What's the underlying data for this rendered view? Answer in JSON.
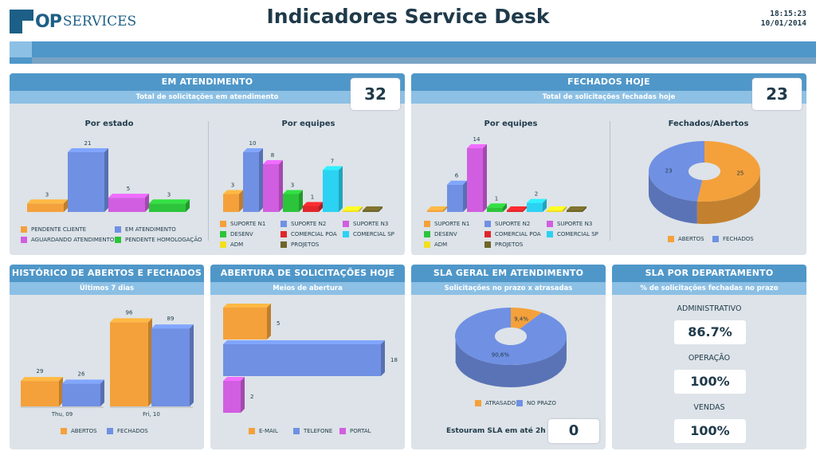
{
  "header": {
    "logo_op": "OP",
    "logo_services": "SERVICES",
    "title": "Indicadores Service Desk",
    "time": "18:15:23",
    "date": "10/01/2014"
  },
  "colors": {
    "orange": "#f4a13b",
    "blue": "#7090e3",
    "magenta": "#d15ee0",
    "green": "#2cc43a",
    "red": "#e0262b",
    "cyan": "#2bd2f2",
    "yellow": "#f3df1f",
    "olive": "#6f6529"
  },
  "em_atendimento": {
    "title": "EM ATENDIMENTO",
    "subtitle": "Total de solicitações em atendimento",
    "total": "32",
    "por_estado": {
      "title": "Por estado",
      "legend": [
        "PENDENTE CLIENTE",
        "EM ATENDIMENTO",
        "AGUARDANDO ATENDIMENTO",
        "PENDENTE HOMOLOGAÇÃO"
      ]
    },
    "por_equipes": {
      "title": "Por equipes",
      "legend": [
        "SUPORTE N1",
        "SUPORTE N2",
        "SUPORTE N3",
        "DESENV",
        "COMERCIAL POA",
        "COMERCIAL SP",
        "ADM",
        "PROJETOS"
      ]
    }
  },
  "fechados_hoje": {
    "title": "FECHADOS HOJE",
    "subtitle": "Total de solicitações fechadas hoje",
    "total": "23",
    "por_equipes": {
      "title": "Por equipes",
      "legend": [
        "SUPORTE N1",
        "SUPORTE N2",
        "SUPORTE N3",
        "DESENV",
        "COMERCIAL POA",
        "COMERCIAL SP",
        "ADM",
        "PROJETOS"
      ]
    },
    "fechados_abertos": {
      "title": "Fechados/Abertos",
      "legend": [
        "ABERTOS",
        "FECHADOS"
      ]
    }
  },
  "historico": {
    "title": "HISTÓRICO DE ABERTOS E FECHADOS",
    "subtitle": "Últimos 7 dias",
    "legend": [
      "ABERTOS",
      "FECHADOS"
    ]
  },
  "abertura": {
    "title": "ABERTURA DE SOLICITAÇÕES HOJE",
    "subtitle": "Meios de abertura",
    "legend": [
      "E-MAIL",
      "TELEFONE",
      "PORTAL"
    ]
  },
  "sla_geral": {
    "title": "SLA GERAL EM ATENDIMENTO",
    "subtitle": "Solicitações no prazo x atrasadas",
    "legend": [
      "ATRASADO",
      "NO PRAZO"
    ],
    "estouram_label": "Estouram SLA em até 2h",
    "estouram_value": "0"
  },
  "sla_depto": {
    "title": "SLA POR DEPARTAMENTO",
    "subtitle": "% de solicitações fechadas no prazo",
    "items": [
      {
        "name": "ADMINISTRATIVO",
        "value": "86.7%"
      },
      {
        "name": "OPERAÇÃO",
        "value": "100%"
      },
      {
        "name": "VENDAS",
        "value": "100%"
      }
    ]
  },
  "chart_data": [
    {
      "id": "estado",
      "type": "bar",
      "title": "Por estado",
      "categories": [
        "PENDENTE CLIENTE",
        "EM ATENDIMENTO",
        "AGUARDANDO ATENDIMENTO",
        "PENDENTE HOMOLOGAÇÃO"
      ],
      "values": [
        3,
        21,
        5,
        3
      ],
      "colors": [
        "#f4a13b",
        "#7090e3",
        "#d15ee0",
        "#2cc43a"
      ]
    },
    {
      "id": "equipes_atend",
      "type": "bar",
      "title": "Por equipes",
      "categories": [
        "SUPORTE N1",
        "SUPORTE N2",
        "SUPORTE N3",
        "DESENV",
        "COMERCIAL POA",
        "COMERCIAL SP",
        "ADM",
        "PROJETOS"
      ],
      "values": [
        3,
        10,
        8,
        3,
        1,
        7,
        0,
        0
      ],
      "colors": [
        "#f4a13b",
        "#7090e3",
        "#d15ee0",
        "#2cc43a",
        "#e0262b",
        "#2bd2f2",
        "#f3df1f",
        "#6f6529"
      ]
    },
    {
      "id": "equipes_fech",
      "type": "bar",
      "title": "Por equipes",
      "categories": [
        "SUPORTE N1",
        "SUPORTE N2",
        "SUPORTE N3",
        "DESENV",
        "COMERCIAL POA",
        "COMERCIAL SP",
        "ADM",
        "PROJETOS"
      ],
      "values": [
        0,
        6,
        14,
        1,
        0,
        2,
        0,
        0
      ],
      "colors": [
        "#f4a13b",
        "#7090e3",
        "#d15ee0",
        "#2cc43a",
        "#e0262b",
        "#2bd2f2",
        "#f3df1f",
        "#6f6529"
      ]
    },
    {
      "id": "fech_abertos",
      "type": "pie",
      "title": "Fechados/Abertos",
      "categories": [
        "ABERTOS",
        "FECHADOS"
      ],
      "values": [
        25,
        23
      ],
      "colors": [
        "#f4a13b",
        "#7090e3"
      ]
    },
    {
      "id": "historico",
      "type": "bar",
      "categories": [
        "Thu, 09",
        "Fri, 10"
      ],
      "series": [
        {
          "name": "ABERTOS",
          "values": [
            29,
            96
          ]
        },
        {
          "name": "FECHADOS",
          "values": [
            26,
            89
          ]
        }
      ],
      "colors": [
        "#f4a13b",
        "#7090e3"
      ]
    },
    {
      "id": "abertura",
      "type": "bar",
      "orientation": "horizontal",
      "categories": [
        "E-MAIL",
        "TELEFONE",
        "PORTAL"
      ],
      "values": [
        5,
        18,
        2
      ],
      "colors": [
        "#f4a13b",
        "#7090e3",
        "#d15ee0"
      ]
    },
    {
      "id": "sla",
      "type": "pie",
      "categories": [
        "ATRASADO",
        "NO PRAZO"
      ],
      "values": [
        9.4,
        90.6
      ],
      "labels": [
        "9,4%",
        "90,6%"
      ],
      "colors": [
        "#f4a13b",
        "#7090e3"
      ]
    }
  ]
}
